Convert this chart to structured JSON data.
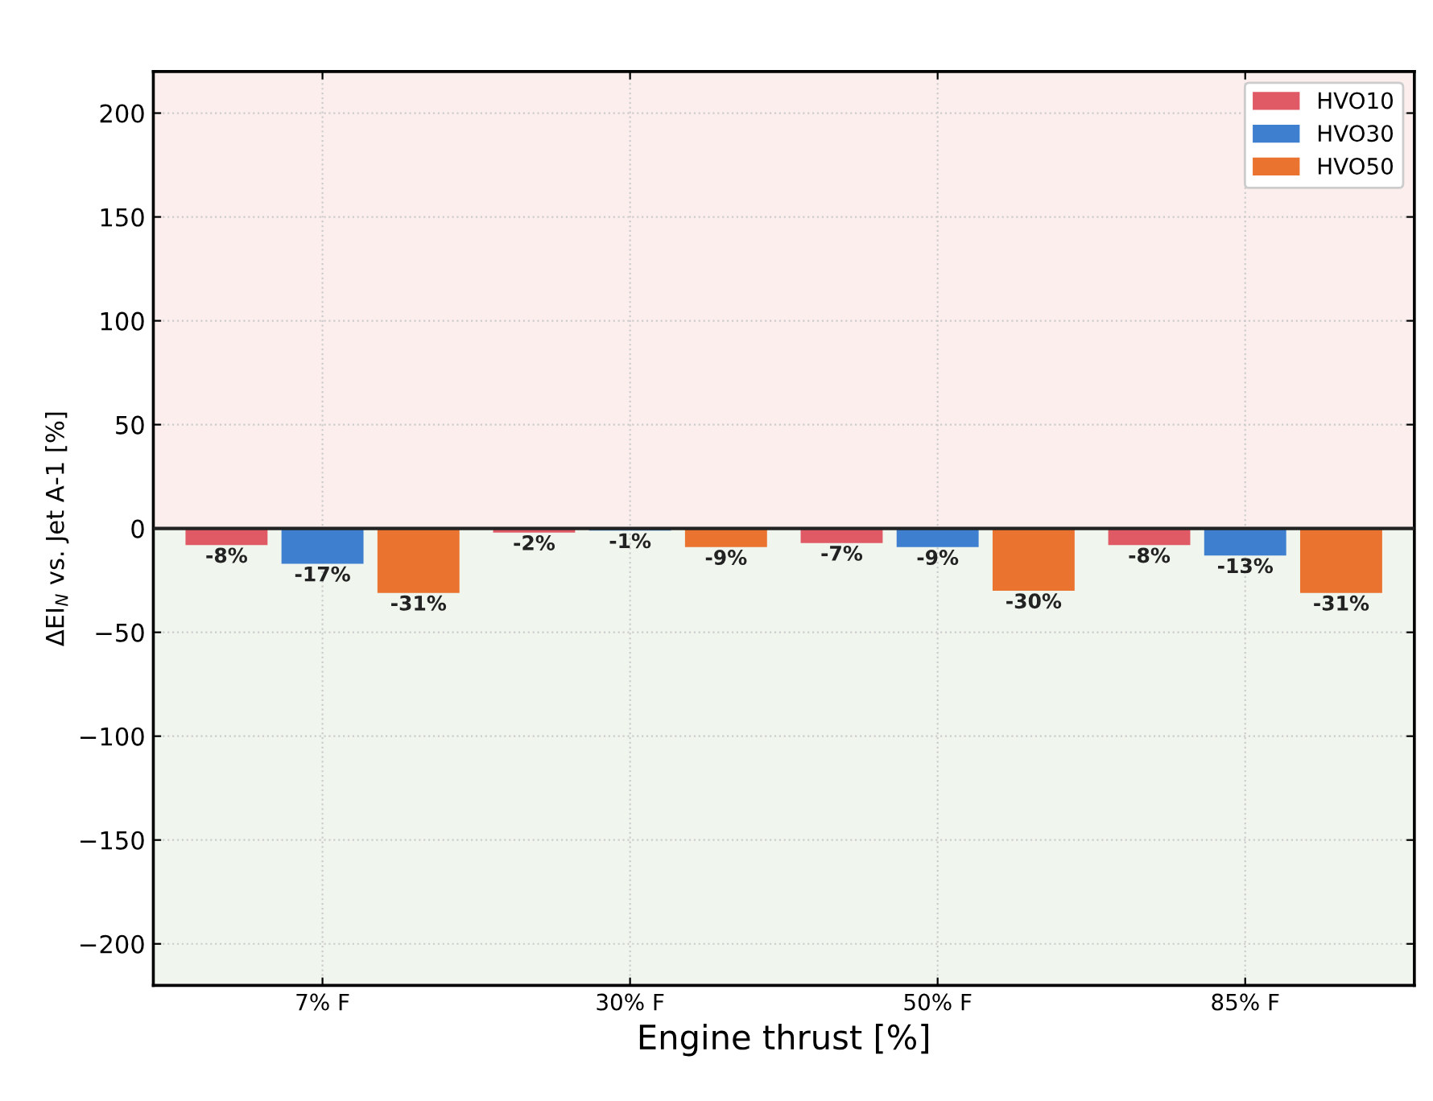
{
  "chart_data": {
    "type": "bar",
    "xlabel": "Engine thrust [%]",
    "ylabel": "ΔEI$_{N}$ vs. Jet A-1 [%]",
    "categories": [
      "7% F",
      "30% F",
      "50% F",
      "85% F"
    ],
    "series": [
      {
        "name": "HVO10",
        "color": "#e05a66",
        "values": [
          -8,
          -2,
          -7,
          -8
        ],
        "value_labels": [
          "-8%",
          "-2%",
          "-7%",
          "-8%"
        ]
      },
      {
        "name": "HVO30",
        "color": "#3f7fcf",
        "values": [
          -17,
          -1,
          -9,
          -13
        ],
        "value_labels": [
          "-17%",
          "-1%",
          "-9%",
          "-13%"
        ]
      },
      {
        "name": "HVO50",
        "color": "#ea7330",
        "values": [
          -31,
          -9,
          -30,
          -31
        ],
        "value_labels": [
          "-31%",
          "-9%",
          "-30%",
          "-31%"
        ]
      }
    ],
    "ylim": [
      -220,
      220
    ],
    "yticks": [
      {
        "value": -200,
        "label": "−200"
      },
      {
        "value": -150,
        "label": "−150"
      },
      {
        "value": -100,
        "label": "−100"
      },
      {
        "value": -50,
        "label": "−50"
      },
      0,
      50,
      100,
      150,
      200
    ],
    "bands": [
      {
        "axis": "y",
        "from": 0,
        "to": 220,
        "color": "#fdeeee"
      },
      {
        "axis": "y",
        "from": -220,
        "to": 0,
        "color": "#f0f6ee"
      }
    ],
    "ref_lines": [
      {
        "axis": "y",
        "value": 0,
        "color": "#222222",
        "line_style": "solid"
      }
    ],
    "grid": true,
    "legend": "top right"
  }
}
